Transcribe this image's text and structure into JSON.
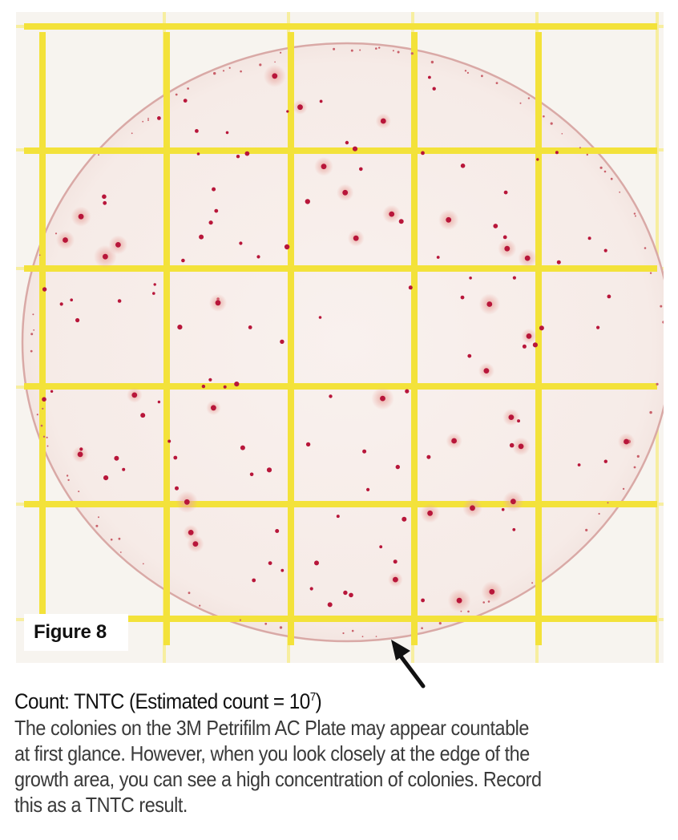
{
  "figure": {
    "label": "Figure 8"
  },
  "caption": {
    "title_prefix": "Count: TNTC (Estimated count = 10",
    "title_exponent": "7",
    "title_suffix": ")",
    "body_lines": [
      "The colonies on the 3M Petrifilm AC Plate may appear countable",
      "at first glance. However, when you look closely at the edge of the",
      "growth area, you can see a high concentration of colonies. Record",
      "this as a TNTC result."
    ]
  },
  "colors": {
    "grid_line": "#f3e23a",
    "grid_faint": "#f7eea0",
    "film_background": "#f7f4ef",
    "growth_area": "#f6ece8",
    "growth_edge": "#d9a9a6",
    "colony": "#b8163a",
    "colony_halo": "#e9a7a0"
  }
}
